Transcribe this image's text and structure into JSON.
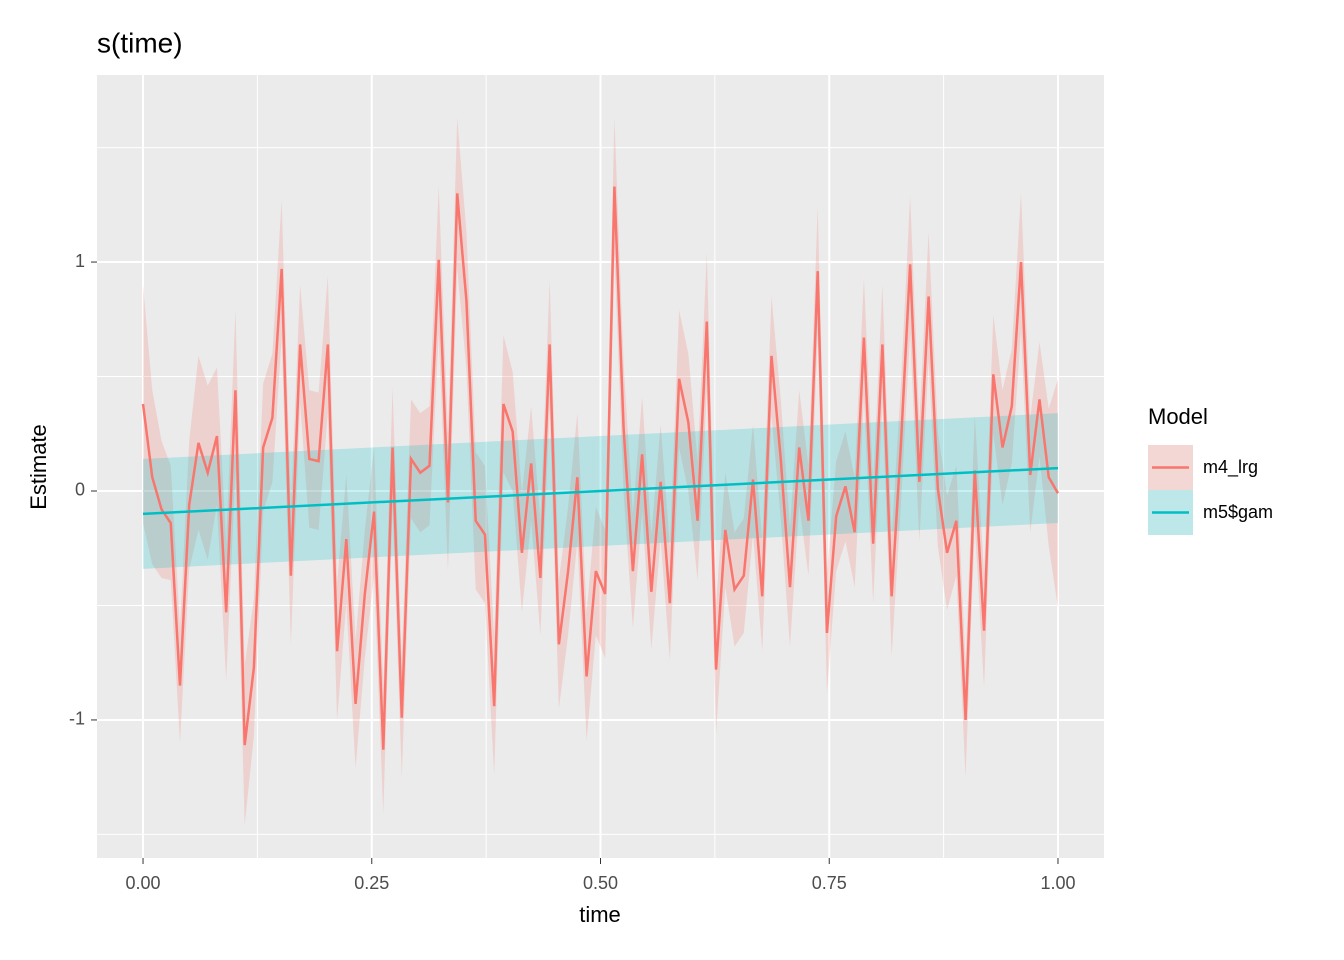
{
  "chart_data": {
    "type": "line",
    "title": "s(time)",
    "x_label": "time",
    "y_label": "Estimate",
    "xlim": [
      -0.0503,
      1.0503
    ],
    "ylim": [
      -1.603,
      1.817
    ],
    "xticks": [
      {
        "value": 0,
        "label": "0.00"
      },
      {
        "value": 0.25,
        "label": "0.25"
      },
      {
        "value": 0.5,
        "label": "0.50"
      },
      {
        "value": 0.75,
        "label": "0.75"
      },
      {
        "value": 1,
        "label": "1.00"
      }
    ],
    "yticks": [
      -1,
      0,
      1
    ],
    "minor_xticks": [
      0.125,
      0.375,
      0.625,
      0.875
    ],
    "minor_yticks": [
      -1.5,
      -0.5,
      0.5,
      1.5
    ],
    "grid": true,
    "legend_title": "Model",
    "legend_position": "right",
    "series": [
      {
        "name": "m4_lrg",
        "color": "#F8766D",
        "x": [
          0,
          0.0101,
          0.0202,
          0.0303,
          0.0404,
          0.0505,
          0.0606,
          0.0707,
          0.0808,
          0.0909,
          0.101,
          0.1111,
          0.1212,
          0.1313,
          0.1414,
          0.1515,
          0.1616,
          0.1717,
          0.1818,
          0.1919,
          0.202,
          0.2121,
          0.2222,
          0.2323,
          0.2424,
          0.2525,
          0.2626,
          0.2727,
          0.2828,
          0.2929,
          0.303,
          0.3131,
          0.3232,
          0.3333,
          0.3434,
          0.3535,
          0.3636,
          0.3737,
          0.3838,
          0.3939,
          0.404,
          0.4141,
          0.4242,
          0.4343,
          0.4444,
          0.4545,
          0.4646,
          0.4747,
          0.4848,
          0.4949,
          0.5051,
          0.5152,
          0.5253,
          0.5354,
          0.5455,
          0.5556,
          0.5657,
          0.5758,
          0.5859,
          0.596,
          0.6061,
          0.6162,
          0.6263,
          0.6364,
          0.6465,
          0.6566,
          0.6667,
          0.6768,
          0.6869,
          0.697,
          0.7071,
          0.7172,
          0.7273,
          0.7374,
          0.7475,
          0.7576,
          0.7677,
          0.7778,
          0.7879,
          0.798,
          0.8081,
          0.8182,
          0.8283,
          0.8384,
          0.8485,
          0.8586,
          0.8687,
          0.8788,
          0.8889,
          0.899,
          0.9091,
          0.9192,
          0.9293,
          0.9394,
          0.9495,
          0.9596,
          0.9697,
          0.9798,
          0.9899,
          1
        ],
        "values": [
          0.38,
          0.06,
          -0.08,
          -0.14,
          -0.85,
          -0.06,
          0.21,
          0.08,
          0.24,
          -0.53,
          0.44,
          -1.11,
          -0.77,
          0.19,
          0.32,
          0.97,
          -0.37,
          0.64,
          0.14,
          0.13,
          0.64,
          -0.7,
          -0.21,
          -0.93,
          -0.45,
          -0.09,
          -1.13,
          0.19,
          -0.99,
          0.14,
          0.08,
          0.11,
          1.01,
          -0.05,
          1.3,
          0.83,
          -0.13,
          -0.19,
          -0.94,
          0.38,
          0.26,
          -0.27,
          0.12,
          -0.38,
          0.64,
          -0.67,
          -0.35,
          0.06,
          -0.81,
          -0.35,
          -0.45,
          1.33,
          0.27,
          -0.35,
          0.16,
          -0.44,
          0.04,
          -0.49,
          0.49,
          0.3,
          -0.13,
          0.74,
          -0.78,
          -0.17,
          -0.43,
          -0.37,
          0.05,
          -0.46,
          0.59,
          0.14,
          -0.42,
          0.19,
          -0.13,
          0.96,
          -0.62,
          -0.11,
          0.02,
          -0.18,
          0.67,
          -0.23,
          0.64,
          -0.46,
          0.2,
          0.99,
          0.04,
          0.85,
          0.01,
          -0.27,
          -0.13,
          -1.0,
          0.09,
          -0.61,
          0.51,
          0.19,
          0.37,
          1.0,
          0.07,
          0.4,
          0.06,
          -0.01
        ],
        "ci": [
          0.52,
          0.38,
          0.3,
          0.25,
          0.25,
          0.28,
          0.38,
          0.38,
          0.3,
          0.3,
          0.35,
          0.35,
          0.3,
          0.28,
          0.28,
          0.3,
          0.3,
          0.26,
          0.3,
          0.3,
          0.3,
          0.3,
          0.28,
          0.28,
          0.28,
          0.28,
          0.28,
          0.26,
          0.26,
          0.26,
          0.26,
          0.26,
          0.32,
          0.3,
          0.33,
          0.3,
          0.3,
          0.3,
          0.3,
          0.3,
          0.26,
          0.26,
          0.25,
          0.25,
          0.28,
          0.28,
          0.28,
          0.28,
          0.28,
          0.28,
          0.28,
          0.3,
          0.28,
          0.25,
          0.25,
          0.25,
          0.25,
          0.25,
          0.3,
          0.3,
          0.26,
          0.3,
          0.28,
          0.25,
          0.25,
          0.25,
          0.24,
          0.24,
          0.26,
          0.26,
          0.26,
          0.25,
          0.24,
          0.28,
          0.26,
          0.24,
          0.24,
          0.24,
          0.26,
          0.26,
          0.26,
          0.26,
          0.26,
          0.3,
          0.26,
          0.28,
          0.25,
          0.25,
          0.24,
          0.25,
          0.24,
          0.25,
          0.26,
          0.25,
          0.25,
          0.3,
          0.25,
          0.25,
          0.3,
          0.5
        ]
      },
      {
        "name": "m5$gam",
        "color": "#00BFC4",
        "x": [
          0,
          1
        ],
        "values": [
          -0.1,
          0.1
        ],
        "ci": [
          0.24,
          0.24
        ]
      }
    ]
  }
}
